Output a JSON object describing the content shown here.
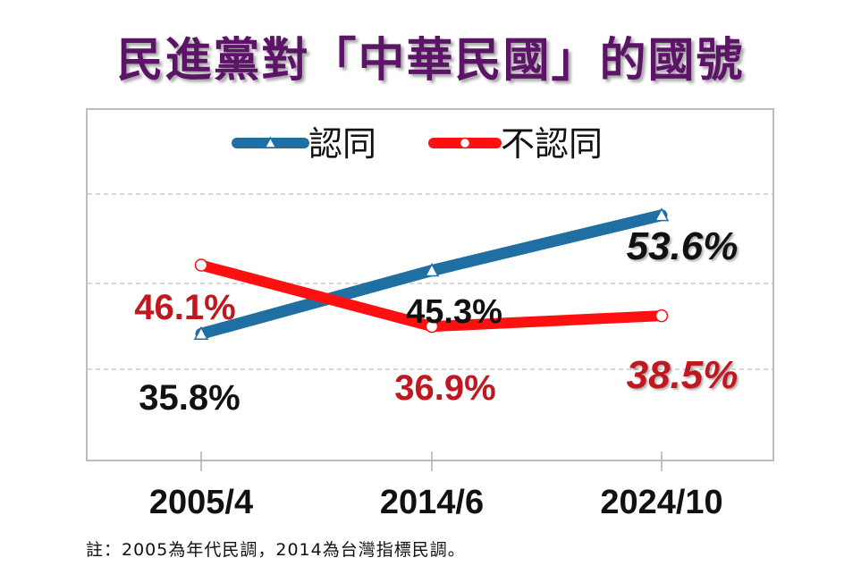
{
  "title": "民進黨對「中華民國」的國號",
  "footnote": "註：2005為年代民調，2014為台灣指標民調。",
  "colors": {
    "title": "#5b1466",
    "agree": "#1f6fa3",
    "disagree": "#ff1010",
    "agree_label": "#111111",
    "disagree_label": "#c0181f"
  },
  "chart_data": {
    "type": "line",
    "categories": [
      "2005/4",
      "2014/6",
      "2024/10"
    ],
    "series": [
      {
        "name": "認同",
        "values": [
          35.8,
          45.3,
          53.6
        ],
        "labels": [
          "35.8%",
          "45.3%",
          "53.6%"
        ],
        "marker": "triangle"
      },
      {
        "name": "不認同",
        "values": [
          46.1,
          36.9,
          38.5
        ],
        "labels": [
          "46.1%",
          "36.9%",
          "38.5%"
        ],
        "marker": "circle"
      }
    ],
    "legend": "top",
    "grid": true,
    "ylim": [
      20,
      60
    ]
  }
}
